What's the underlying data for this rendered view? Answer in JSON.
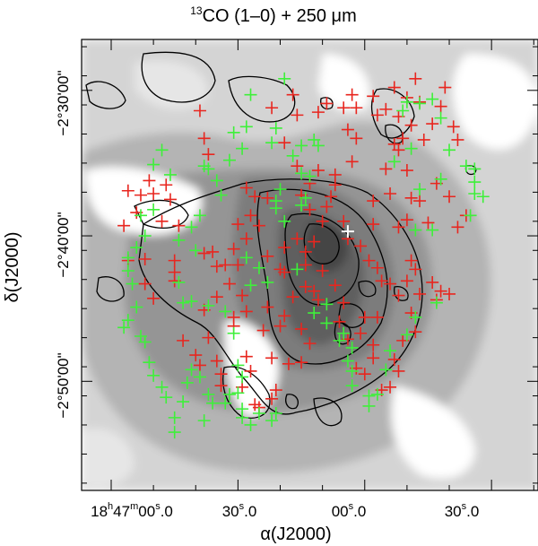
{
  "chart_data": {
    "type": "scatter",
    "title_prefix": "13",
    "title": "CO (1–0) + 250 μm",
    "xlabel": "α(J2000)",
    "ylabel": "δ(J2000)",
    "x_tick_labels": [
      "18h47m00s.0",
      "30s.0",
      "00s.0",
      "30s.0"
    ],
    "x_tick_labels_display": [
      {
        "main": "18",
        "sup1": "h",
        "mid": "47",
        "sup2": "m",
        "tail": "00",
        "sup3": "s",
        "end": ".0"
      },
      {
        "main": "30",
        "sup1": "s",
        "end": ".0"
      },
      {
        "main": "00",
        "sup1": "s",
        "end": ".0"
      },
      {
        "main": "30",
        "sup1": "s",
        "end": ".0"
      }
    ],
    "y_tick_labels": [
      "−2°30'00\"",
      "−2°40'00\"",
      "−2°50'00\""
    ],
    "y_ticks_arcmin": [
      -150,
      -160,
      -170
    ],
    "x_ticks_seconds": [
      0,
      30,
      60,
      90
    ],
    "xlim_seconds": [
      -7,
      101
    ],
    "ylim_arcmin": [
      -177.5,
      -146.5
    ],
    "background": "grayscale 250 μm emission with 13CO (1–0) black contours",
    "series": [
      {
        "color": "#e8261f",
        "marker": "plus",
        "points": [
          [
            21,
            -151.4
          ],
          [
            22,
            -153.3
          ],
          [
            23,
            -154.4
          ],
          [
            41,
            -153.6
          ],
          [
            44,
            -155.2
          ],
          [
            49,
            -151.5
          ],
          [
            51,
            -150.9
          ],
          [
            55,
            -151.2
          ],
          [
            56,
            -152.7
          ],
          [
            58,
            -153.3
          ],
          [
            57,
            -154.9
          ],
          [
            49,
            -155.5
          ],
          [
            53,
            -155.8
          ],
          [
            53,
            -156.5
          ],
          [
            52,
            -157.3
          ],
          [
            47,
            -156.4
          ],
          [
            45,
            -157.2
          ],
          [
            47,
            -158.2
          ],
          [
            51,
            -158.0
          ],
          [
            55,
            -159.0
          ],
          [
            50,
            -159.0
          ],
          [
            56,
            -160.2
          ],
          [
            59,
            -160.7
          ],
          [
            62,
            -159.2
          ],
          [
            61,
            -161.7
          ],
          [
            63,
            -162.2
          ],
          [
            48,
            -160.4
          ],
          [
            46,
            -161.1
          ],
          [
            46,
            -162.0
          ],
          [
            44,
            -160.2
          ],
          [
            41,
            -160.8
          ],
          [
            40,
            -162.3
          ],
          [
            41,
            -162.5
          ],
          [
            37,
            -161.4
          ],
          [
            35,
            -159.3
          ],
          [
            33,
            -158.6
          ],
          [
            32,
            -160.2
          ],
          [
            32,
            -156.7
          ],
          [
            34,
            -157.3
          ],
          [
            37,
            -157.4
          ],
          [
            30,
            -159.2
          ],
          [
            29,
            -160.9
          ],
          [
            30,
            -162.0
          ],
          [
            27,
            -162.0
          ],
          [
            28,
            -163.3
          ],
          [
            25,
            -162.1
          ],
          [
            24,
            -161.1
          ],
          [
            22,
            -161.2
          ],
          [
            25,
            -164.2
          ],
          [
            22,
            -165.1
          ],
          [
            15,
            -163.1
          ],
          [
            15,
            -162.5
          ],
          [
            15,
            -161.7
          ],
          [
            16,
            -159.3
          ],
          [
            14,
            -157.5
          ],
          [
            13,
            -156.5
          ],
          [
            12,
            -159.0
          ],
          [
            8,
            -161.6
          ],
          [
            8,
            -163.3
          ],
          [
            10,
            -164.3
          ],
          [
            6,
            -158.4
          ],
          [
            7,
            -157.2
          ],
          [
            9,
            -156.2
          ],
          [
            10,
            -157.1
          ],
          [
            4,
            -156.9
          ],
          [
            3,
            -159.3
          ],
          [
            4,
            -161.7
          ],
          [
            17,
            -167.2
          ],
          [
            20,
            -168.2
          ],
          [
            21,
            -168.9
          ],
          [
            23,
            -167.0
          ],
          [
            25,
            -168.6
          ],
          [
            26,
            -169.5
          ],
          [
            26,
            -170.3
          ],
          [
            33,
            -169.3
          ],
          [
            32,
            -168.3
          ],
          [
            31,
            -170.4
          ],
          [
            34,
            -171.6
          ],
          [
            35,
            -171.8
          ],
          [
            38,
            -171.2
          ],
          [
            39,
            -170.6
          ],
          [
            38,
            -168.4
          ],
          [
            36,
            -166.5
          ],
          [
            41,
            -165.5
          ],
          [
            43,
            -164.2
          ],
          [
            46,
            -163.5
          ],
          [
            48,
            -163.8
          ],
          [
            49,
            -164.4
          ],
          [
            50,
            -162.4
          ],
          [
            53,
            -163.4
          ],
          [
            55,
            -164.6
          ],
          [
            54,
            -165.9
          ],
          [
            56,
            -167.1
          ],
          [
            59,
            -166.7
          ],
          [
            60,
            -165.6
          ],
          [
            64,
            -163.1
          ],
          [
            66,
            -163.3
          ],
          [
            68,
            -164.1
          ],
          [
            70,
            -163.1
          ],
          [
            71,
            -161.7
          ],
          [
            72,
            -162.3
          ],
          [
            73,
            -164.0
          ],
          [
            71,
            -165.3
          ],
          [
            72,
            -166.6
          ],
          [
            69,
            -167.2
          ],
          [
            67,
            -168.5
          ],
          [
            68,
            -169.3
          ],
          [
            66,
            -170.4
          ],
          [
            64,
            -170.6
          ],
          [
            62,
            -168.4
          ],
          [
            58,
            -169.1
          ],
          [
            60,
            -169.5
          ],
          [
            62,
            -167.5
          ],
          [
            63,
            -165.6
          ],
          [
            76,
            -163.2
          ],
          [
            77,
            -164.4
          ],
          [
            78,
            -163.8
          ],
          [
            80,
            -164.0
          ],
          [
            82,
            -159.4
          ],
          [
            84,
            -158.6
          ],
          [
            80,
            -157.3
          ],
          [
            77,
            -156.4
          ],
          [
            75,
            -159.1
          ],
          [
            73,
            -157.6
          ],
          [
            71,
            -157.4
          ],
          [
            70,
            -155.5
          ],
          [
            68,
            -154.1
          ],
          [
            67,
            -153.7
          ],
          [
            66,
            -157.1
          ],
          [
            62,
            -157.6
          ],
          [
            68,
            -159.4
          ],
          [
            70,
            -158.9
          ],
          [
            74,
            -153.4
          ],
          [
            76,
            -152.3
          ],
          [
            78,
            -151.1
          ],
          [
            79,
            -149.8
          ],
          [
            81,
            -152.5
          ],
          [
            82,
            -153.4
          ],
          [
            57,
            -150.3
          ],
          [
            58,
            -151.2
          ],
          [
            62,
            -150.4
          ],
          [
            63,
            -151.7
          ],
          [
            67,
            -149.8
          ],
          [
            68,
            -151.8
          ],
          [
            70,
            -150.5
          ],
          [
            72,
            -149.2
          ],
          [
            73,
            -150.8
          ],
          [
            65,
            -155.4
          ],
          [
            65,
            -151.3
          ],
          [
            69,
            -153.3
          ],
          [
            71,
            -152.4
          ],
          [
            43,
            -150.3
          ],
          [
            44,
            -151.7
          ],
          [
            38,
            -151.2
          ],
          [
            47,
            -167.4
          ],
          [
            45,
            -166.4
          ],
          [
            45,
            -168.7
          ],
          [
            42,
            -168.8
          ],
          [
            40,
            -166.2
          ],
          [
            37,
            -164.9
          ],
          [
            32,
            -165.2
          ],
          [
            31,
            -164.1
          ],
          [
            29,
            -166.2
          ],
          [
            29,
            -165.6
          ]
        ]
      },
      {
        "color": "#3ef03a",
        "marker": "plus",
        "points": [
          [
            41,
            -149.2
          ],
          [
            33,
            -150.3
          ],
          [
            32,
            -152.5
          ],
          [
            29,
            -152.9
          ],
          [
            31,
            -154.0
          ],
          [
            28,
            -154.8
          ],
          [
            23,
            -155.4
          ],
          [
            22,
            -155.2
          ],
          [
            25,
            -156.2
          ],
          [
            26,
            -157.2
          ],
          [
            21,
            -158.6
          ],
          [
            19,
            -159.4
          ],
          [
            20,
            -161.0
          ],
          [
            16,
            -160.3
          ],
          [
            16,
            -163.2
          ],
          [
            17,
            -164.6
          ],
          [
            19,
            -164.5
          ],
          [
            23,
            -164.8
          ],
          [
            27,
            -165.2
          ],
          [
            29,
            -166.7
          ],
          [
            30,
            -168.9
          ],
          [
            31,
            -169.7
          ],
          [
            28,
            -170.9
          ],
          [
            27,
            -171.5
          ],
          [
            30,
            -170.8
          ],
          [
            31,
            -171.9
          ],
          [
            31,
            -172.5
          ],
          [
            33,
            -173.0
          ],
          [
            35,
            -172.2
          ],
          [
            38,
            -172.7
          ],
          [
            39,
            -172.2
          ],
          [
            45,
            -157.9
          ],
          [
            46,
            -157.4
          ],
          [
            47,
            -155.9
          ],
          [
            45,
            -155.7
          ],
          [
            43,
            -154.5
          ],
          [
            45,
            -153.8
          ],
          [
            48,
            -153.4
          ],
          [
            49,
            -153.8
          ],
          [
            39,
            -152.6
          ],
          [
            38,
            -153.6
          ],
          [
            40,
            -156.8
          ],
          [
            39,
            -157.6
          ],
          [
            39,
            -158.1
          ],
          [
            41,
            -159.0
          ],
          [
            37,
            -163.2
          ],
          [
            44,
            -162.3
          ],
          [
            48,
            -165.3
          ],
          [
            51,
            -164.7
          ],
          [
            51,
            -166.0
          ],
          [
            55,
            -166.7
          ],
          [
            57,
            -167.7
          ],
          [
            54,
            -167.2
          ],
          [
            56,
            -168.6
          ],
          [
            57,
            -169.3
          ],
          [
            57,
            -170.3
          ],
          [
            61,
            -171.0
          ],
          [
            61,
            -171.7
          ],
          [
            63,
            -170.9
          ],
          [
            65,
            -169.2
          ],
          [
            66,
            -167.9
          ],
          [
            70,
            -166.8
          ],
          [
            72,
            -165.6
          ],
          [
            77,
            -164.6
          ],
          [
            76,
            -159.6
          ],
          [
            78,
            -156.1
          ],
          [
            80,
            -154.1
          ],
          [
            84,
            -155.2
          ],
          [
            86,
            -156.3
          ],
          [
            86,
            -157.1
          ],
          [
            85,
            -158.6
          ],
          [
            88,
            -157.3
          ],
          [
            86,
            -155.4
          ],
          [
            78,
            -151.9
          ],
          [
            76,
            -150.6
          ],
          [
            73,
            -150.9
          ],
          [
            70,
            -150.8
          ],
          [
            69,
            -151.4
          ],
          [
            67,
            -154.9
          ],
          [
            71,
            -154.0
          ],
          [
            73,
            -156.8
          ],
          [
            72,
            -159.6
          ],
          [
            12,
            -154.1
          ],
          [
            10,
            -155.1
          ],
          [
            14,
            -155.8
          ],
          [
            10,
            -158.2
          ],
          [
            7,
            -158.6
          ],
          [
            8,
            -160.0
          ],
          [
            6,
            -160.8
          ],
          [
            4,
            -161.5
          ],
          [
            4,
            -162.4
          ],
          [
            5,
            -163.3
          ],
          [
            6,
            -164.9
          ],
          [
            4,
            -165.8
          ],
          [
            3,
            -166.3
          ],
          [
            7,
            -166.9
          ],
          [
            8,
            -167.3
          ],
          [
            9,
            -168.7
          ],
          [
            10,
            -169.6
          ],
          [
            12,
            -170.4
          ],
          [
            13,
            -171.1
          ],
          [
            15,
            -172.5
          ],
          [
            15,
            -173.5
          ],
          [
            17,
            -171.4
          ],
          [
            18,
            -170.1
          ],
          [
            19,
            -169.2
          ],
          [
            21,
            -169.7
          ],
          [
            23,
            -170.9
          ],
          [
            24,
            -171.5
          ],
          [
            22,
            -172.7
          ],
          [
            35,
            -162.2
          ],
          [
            33,
            -163.4
          ],
          [
            32,
            -161.5
          ]
        ]
      },
      {
        "color": "#ffffff",
        "marker": "plus",
        "points": [
          [
            56,
            -159.7
          ]
        ]
      }
    ]
  }
}
